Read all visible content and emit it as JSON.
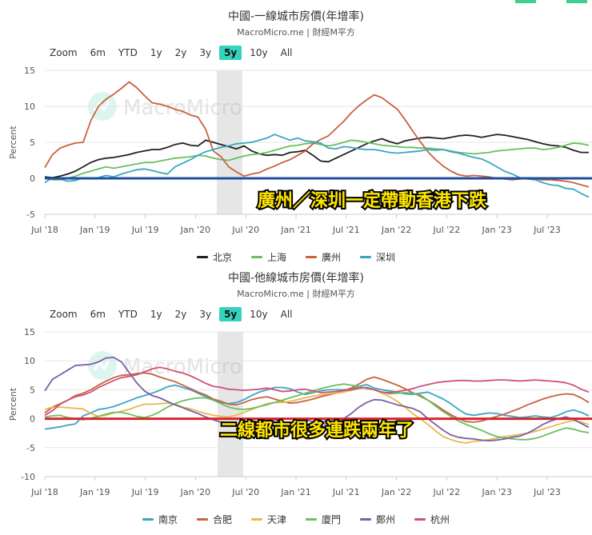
{
  "chart_data": [
    {
      "type": "line",
      "title": "中國-一線城市房價(年增率)",
      "subtitle": "MacroMicro.me | 財經M平方",
      "zoom_buttons": [
        "Zoom",
        "6m",
        "YTD",
        "1y",
        "2y",
        "3y",
        "5y",
        "10y",
        "All"
      ],
      "zoom_active": "5y",
      "watermark": "MacroMicro",
      "ylabel": "Percent",
      "ylim": [
        -5,
        15
      ],
      "yticks": [
        "15",
        "10",
        "5",
        "0",
        "-5"
      ],
      "xticks": [
        "Jul '18",
        "Jan '19",
        "Jul '19",
        "Jan '20",
        "Jul '20",
        "Jan '21",
        "Jul '21",
        "Jan '22",
        "Jul '22",
        "Jan '23",
        "Jul '23"
      ],
      "annotation": "廣州／深圳一定帶動香港下跌",
      "reference_line": {
        "value": 0,
        "color": "#1f4fa0"
      },
      "legend_position": "bottom",
      "series": [
        {
          "name": "北京",
          "color": "#222222",
          "values": [
            0.2,
            0.1,
            0.3,
            0.6,
            1.0,
            1.6,
            2.2,
            2.6,
            2.8,
            2.9,
            3.1,
            3.3,
            3.6,
            3.8,
            4.0,
            4.0,
            4.3,
            4.7,
            4.9,
            4.6,
            4.5,
            5.3,
            5.0,
            4.7,
            4.4,
            4.1,
            4.5,
            3.8,
            3.4,
            3.2,
            3.3,
            3.2,
            3.6,
            3.7,
            3.9,
            3.2,
            2.4,
            2.3,
            2.8,
            3.3,
            3.8,
            4.3,
            4.8,
            5.2,
            5.5,
            5.1,
            4.8,
            5.2,
            5.4,
            5.6,
            5.7,
            5.6,
            5.5,
            5.7,
            5.9,
            6.0,
            5.9,
            5.7,
            5.9,
            6.1,
            6.0,
            5.8,
            5.6,
            5.4,
            5.1,
            4.8,
            4.6,
            4.5,
            4.3,
            3.9,
            3.6,
            3.6
          ]
        },
        {
          "name": "上海",
          "color": "#6abf5e",
          "values": [
            0.0,
            -0.2,
            -0.2,
            0.0,
            0.3,
            0.7,
            1.0,
            1.3,
            1.6,
            1.4,
            1.6,
            1.8,
            2.0,
            2.2,
            2.2,
            2.4,
            2.6,
            2.8,
            2.9,
            3.0,
            3.2,
            3.1,
            2.8,
            2.6,
            2.5,
            2.8,
            3.1,
            3.3,
            3.4,
            3.6,
            3.9,
            4.2,
            4.5,
            4.6,
            4.8,
            4.9,
            4.7,
            4.5,
            4.7,
            5.0,
            5.3,
            5.2,
            5.0,
            4.8,
            4.6,
            4.5,
            4.4,
            4.3,
            4.3,
            4.2,
            4.2,
            4.1,
            4.0,
            3.8,
            3.6,
            3.5,
            3.4,
            3.5,
            3.6,
            3.8,
            3.9,
            4.0,
            4.1,
            4.2,
            4.2,
            4.0,
            4.1,
            4.3,
            4.6,
            4.9,
            4.8,
            4.6
          ]
        },
        {
          "name": "廣州",
          "color": "#c8623e",
          "values": [
            1.5,
            3.3,
            4.2,
            4.6,
            4.9,
            5.0,
            8.0,
            10.0,
            11.0,
            11.7,
            12.5,
            13.4,
            12.6,
            11.5,
            10.5,
            10.3,
            10.0,
            9.6,
            9.3,
            8.8,
            8.5,
            6.8,
            3.8,
            3.0,
            1.6,
            0.9,
            0.3,
            0.6,
            0.8,
            1.3,
            1.7,
            2.2,
            2.6,
            3.2,
            3.8,
            4.8,
            5.4,
            5.9,
            6.9,
            7.9,
            9.1,
            10.1,
            10.9,
            11.6,
            11.2,
            10.4,
            9.6,
            8.2,
            6.6,
            5.1,
            3.7,
            2.6,
            1.7,
            1.0,
            0.5,
            0.3,
            0.4,
            0.3,
            0.2,
            0.0,
            -0.1,
            -0.2,
            -0.1,
            0.0,
            -0.1,
            -0.2,
            -0.2,
            -0.3,
            -0.4,
            -0.6,
            -0.9,
            -1.2
          ]
        },
        {
          "name": "深圳",
          "color": "#3aa6c4",
          "values": [
            -0.6,
            0.1,
            -0.1,
            -0.4,
            -0.3,
            0.1,
            -0.1,
            0.1,
            0.4,
            0.2,
            0.6,
            0.9,
            1.2,
            1.3,
            1.1,
            0.8,
            0.6,
            1.6,
            2.1,
            2.6,
            3.2,
            3.7,
            4.0,
            4.3,
            4.5,
            4.8,
            4.9,
            5.0,
            5.3,
            5.6,
            6.1,
            5.7,
            5.3,
            5.6,
            5.2,
            5.1,
            4.9,
            4.2,
            4.1,
            4.4,
            4.3,
            4.1,
            4.0,
            4.0,
            3.8,
            3.6,
            3.5,
            3.6,
            3.7,
            3.8,
            4.0,
            3.9,
            4.0,
            3.7,
            3.5,
            3.2,
            2.9,
            2.7,
            2.2,
            1.6,
            1.0,
            0.6,
            0.1,
            -0.1,
            -0.2,
            -0.6,
            -0.9,
            -1.0,
            -1.4,
            -1.5,
            -2.1,
            -2.6
          ]
        }
      ]
    },
    {
      "type": "line",
      "title": "中國-他線城市房價(年增率)",
      "subtitle": "MacroMicro.me | 財經M平方",
      "zoom_buttons": [
        "Zoom",
        "6m",
        "YTD",
        "1y",
        "2y",
        "3y",
        "5y",
        "10y",
        "All"
      ],
      "zoom_active": "5y",
      "watermark": "MacroMicro",
      "ylabel": "Percent",
      "ylim": [
        -10,
        15
      ],
      "yticks": [
        "15",
        "10",
        "5",
        "0",
        "-5",
        "-10"
      ],
      "xticks": [
        "Jul '18",
        "Jan '19",
        "Jul '19",
        "Jan '20",
        "Jul '20",
        "Jan '21",
        "Jul '21",
        "Jan '22",
        "Jul '22",
        "Jan '23",
        "Jul '23"
      ],
      "annotation": "二線都市很多連跌兩年了",
      "reference_line": {
        "value": 0,
        "color": "#d9262e"
      },
      "legend_position": "bottom",
      "series": [
        {
          "name": "南京",
          "color": "#3aa6c4",
          "values": [
            -1.8,
            -1.6,
            -1.4,
            -1.1,
            -0.9,
            0.5,
            1.0,
            1.6,
            1.8,
            2.1,
            2.6,
            3.1,
            3.6,
            4.0,
            4.4,
            4.9,
            5.5,
            5.8,
            5.4,
            5.0,
            4.4,
            3.8,
            3.2,
            2.8,
            2.6,
            2.8,
            3.3,
            4.0,
            4.6,
            5.0,
            5.4,
            5.4,
            5.2,
            4.6,
            4.2,
            4.5,
            4.8,
            5.0,
            5.0,
            5.0,
            5.1,
            5.6,
            5.9,
            5.3,
            5.0,
            4.8,
            4.6,
            4.3,
            4.2,
            4.4,
            4.6,
            4.0,
            3.4,
            2.6,
            1.6,
            0.8,
            0.6,
            0.8,
            1.0,
            0.9,
            0.6,
            0.4,
            0.2,
            0.3,
            0.5,
            0.3,
            0.2,
            0.6,
            1.2,
            1.5,
            1.1,
            0.5
          ]
        },
        {
          "name": "合肥",
          "color": "#c8623e",
          "values": [
            1.0,
            2.0,
            2.6,
            3.2,
            4.0,
            4.4,
            5.0,
            5.8,
            6.5,
            7.1,
            7.5,
            7.6,
            7.8,
            7.9,
            7.7,
            7.2,
            6.8,
            6.4,
            5.8,
            5.2,
            4.6,
            4.1,
            3.4,
            3.0,
            2.5,
            2.4,
            2.8,
            3.3,
            3.6,
            3.8,
            3.4,
            3.0,
            2.7,
            2.8,
            3.1,
            3.4,
            3.8,
            4.1,
            4.4,
            4.8,
            5.3,
            6.0,
            6.8,
            7.2,
            6.8,
            6.3,
            5.8,
            5.2,
            4.5,
            3.9,
            3.2,
            2.4,
            1.5,
            0.7,
            0.0,
            -0.5,
            -0.6,
            -0.4,
            0.0,
            0.4,
            0.8,
            1.3,
            1.8,
            2.4,
            2.9,
            3.4,
            3.8,
            4.1,
            4.3,
            4.2,
            3.6,
            2.8
          ]
        },
        {
          "name": "天津",
          "color": "#e8b84a",
          "values": [
            1.6,
            2.0,
            2.0,
            1.9,
            1.8,
            1.7,
            0.9,
            0.4,
            0.6,
            1.0,
            1.3,
            1.6,
            2.1,
            2.5,
            2.5,
            2.6,
            2.7,
            2.5,
            2.0,
            1.7,
            1.3,
            0.9,
            0.6,
            0.4,
            0.3,
            0.6,
            1.1,
            1.6,
            2.1,
            2.6,
            2.8,
            2.8,
            3.0,
            3.3,
            3.6,
            3.9,
            4.1,
            4.3,
            4.4,
            4.6,
            4.9,
            5.2,
            5.4,
            5.0,
            4.4,
            3.8,
            3.0,
            2.0,
            0.9,
            0.0,
            -1.0,
            -2.1,
            -3.1,
            -3.6,
            -4.0,
            -4.2,
            -3.9,
            -3.8,
            -3.6,
            -3.4,
            -3.1,
            -2.9,
            -2.7,
            -2.5,
            -2.2,
            -1.8,
            -1.4,
            -1.0,
            -0.6,
            -0.3,
            -0.6,
            -1.0
          ]
        },
        {
          "name": "廈門",
          "color": "#6abf5e",
          "values": [
            0.3,
            0.5,
            0.6,
            0.2,
            0.0,
            -0.2,
            0.1,
            0.4,
            0.8,
            1.1,
            1.1,
            0.8,
            0.4,
            0.2,
            0.6,
            1.2,
            2.0,
            2.6,
            3.1,
            3.4,
            3.6,
            3.6,
            3.2,
            2.6,
            2.0,
            1.7,
            1.6,
            1.8,
            2.1,
            2.4,
            2.8,
            3.2,
            3.6,
            4.0,
            4.4,
            4.8,
            5.2,
            5.5,
            5.8,
            6.0,
            5.8,
            5.6,
            5.2,
            5.0,
            4.6,
            4.3,
            4.4,
            4.5,
            4.4,
            4.1,
            3.2,
            2.2,
            1.2,
            0.4,
            -0.4,
            -1.0,
            -1.5,
            -2.0,
            -2.6,
            -3.1,
            -3.3,
            -3.5,
            -3.6,
            -3.6,
            -3.4,
            -3.0,
            -2.5,
            -2.0,
            -1.6,
            -1.8,
            -2.2,
            -2.4
          ]
        },
        {
          "name": "鄭州",
          "color": "#7b5ea8",
          "values": [
            4.8,
            6.8,
            7.6,
            8.4,
            9.2,
            9.3,
            9.4,
            9.8,
            10.5,
            10.6,
            9.8,
            8.0,
            6.2,
            4.8,
            4.0,
            3.6,
            3.0,
            2.4,
            1.9,
            1.4,
            0.9,
            0.3,
            -0.2,
            -0.6,
            -0.9,
            -1.2,
            -1.1,
            -0.8,
            -0.4,
            -0.3,
            -0.2,
            -0.5,
            -0.8,
            -0.4,
            -0.2,
            -0.5,
            -0.8,
            -0.9,
            -0.6,
            0.0,
            0.9,
            2.0,
            2.8,
            3.3,
            3.2,
            2.8,
            2.4,
            2.1,
            1.8,
            1.2,
            0.0,
            -1.0,
            -2.0,
            -2.8,
            -3.2,
            -3.4,
            -3.5,
            -3.7,
            -3.8,
            -3.7,
            -3.5,
            -3.2,
            -3.0,
            -2.5,
            -1.8,
            -1.0,
            -0.4,
            0.0,
            0.3,
            -0.1,
            -0.8,
            -1.5
          ]
        },
        {
          "name": "杭州",
          "color": "#d0517a",
          "values": [
            0.6,
            1.4,
            2.5,
            3.2,
            3.8,
            4.1,
            4.6,
            5.4,
            6.0,
            6.6,
            7.1,
            7.3,
            7.6,
            8.1,
            8.6,
            8.9,
            8.6,
            8.2,
            7.9,
            7.4,
            6.8,
            6.1,
            5.6,
            5.4,
            5.1,
            5.0,
            4.9,
            5.0,
            5.1,
            5.3,
            5.0,
            4.7,
            4.8,
            5.0,
            5.1,
            4.8,
            4.5,
            4.6,
            4.7,
            4.9,
            5.0,
            5.3,
            5.4,
            5.0,
            4.6,
            4.5,
            4.7,
            4.9,
            5.2,
            5.6,
            5.9,
            6.2,
            6.4,
            6.5,
            6.6,
            6.6,
            6.5,
            6.5,
            6.6,
            6.7,
            6.7,
            6.6,
            6.5,
            6.6,
            6.7,
            6.6,
            6.5,
            6.4,
            6.2,
            5.8,
            5.1,
            4.6
          ]
        }
      ]
    }
  ]
}
